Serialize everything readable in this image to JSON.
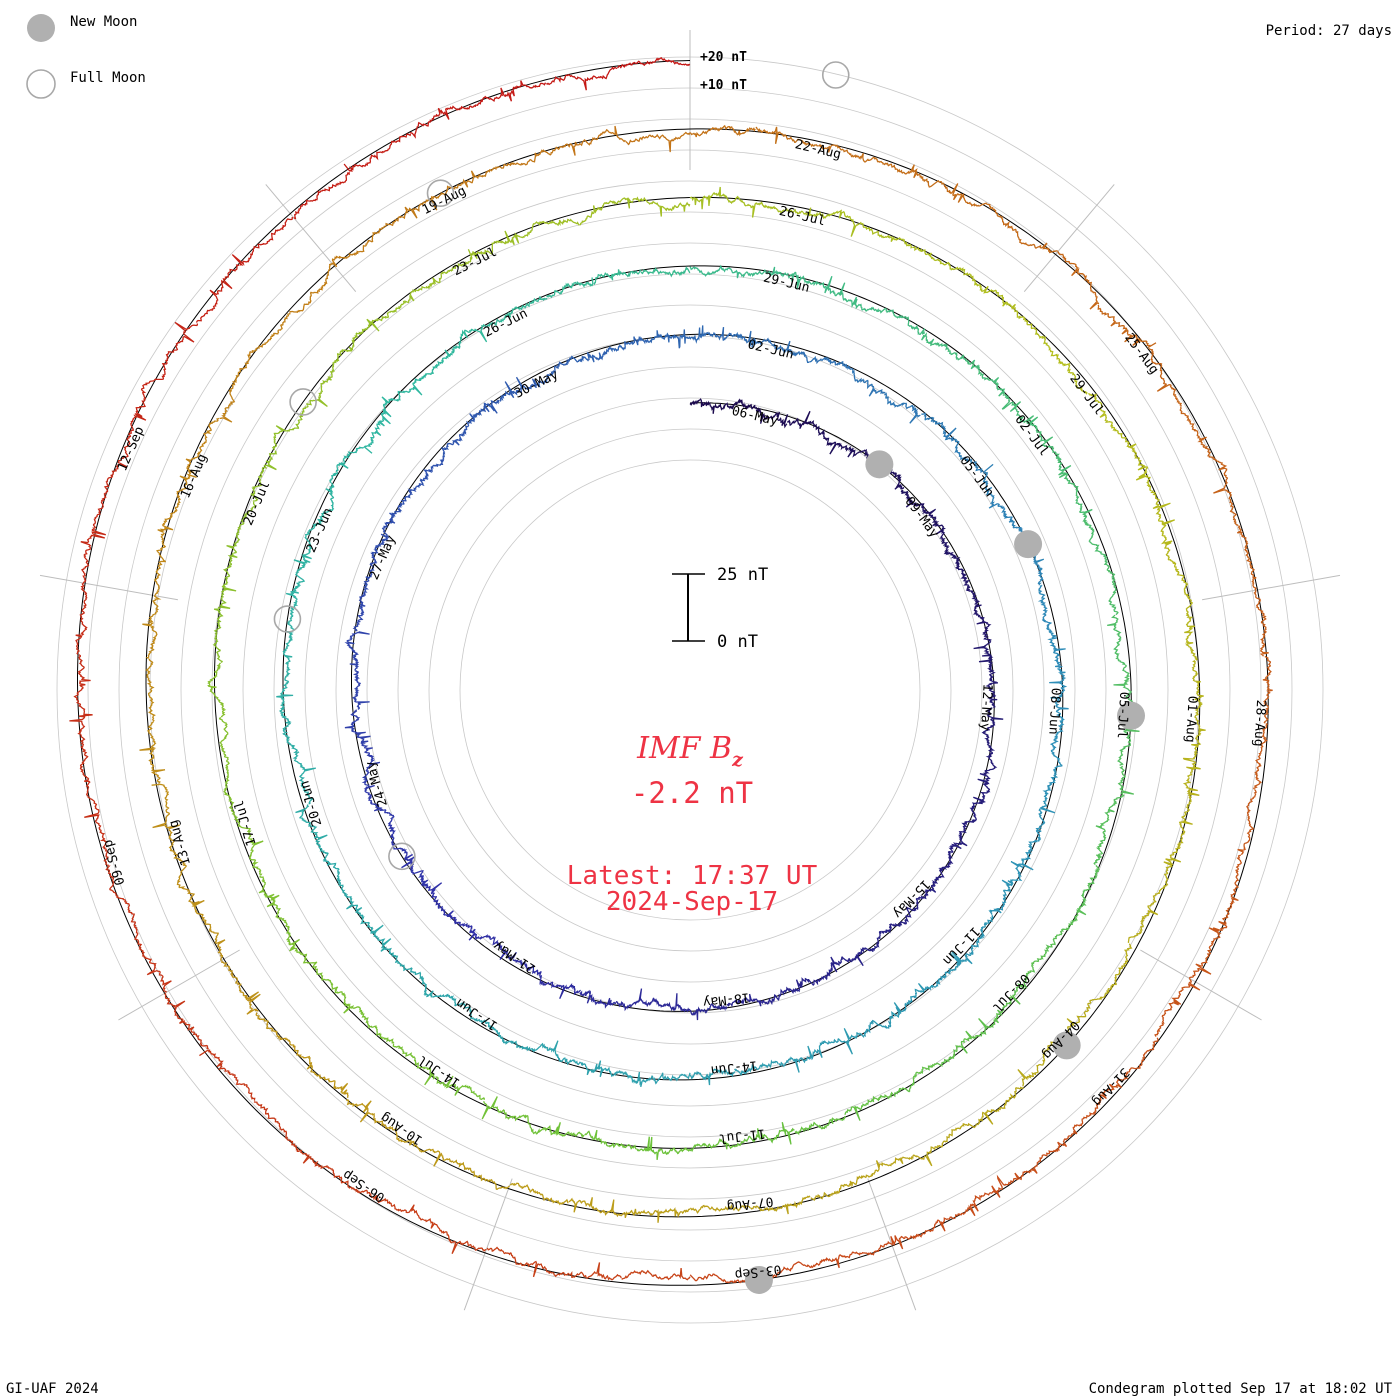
{
  "legend": {
    "new_moon_label": "New Moon",
    "full_moon_label": "Full Moon"
  },
  "header": {
    "period": "Period: 27 days"
  },
  "footer": {
    "credit": "GI-UAF 2024",
    "plotted": "Condegram plotted Sep 17 at 18:02 UT"
  },
  "colors": {
    "new_moon": "#b0b0b0",
    "full_moon_stroke": "#a8a8a8",
    "center_text": "#ee3344",
    "grid": "#c8c8c8",
    "spokes": "#bdbdbd"
  },
  "chart_data": {
    "type": "line",
    "subtype": "condegram spiral",
    "title": "IMF Bz",
    "title_main": "IMF B",
    "title_sub": "z",
    "current_value": "-2.2 nT",
    "latest_label": "Latest: 17:37 UT",
    "latest_date": "2024-Sep-17",
    "period_days": 27,
    "scale_bar": {
      "top_label": "25 nT",
      "bottom_label": "0 nT"
    },
    "ring_labels": [
      "+20 nT",
      "+10 nT"
    ],
    "date_labels": [
      [
        "06-May",
        "09-May",
        "12-May",
        "15-May",
        "18-May",
        "21-May",
        "24-May",
        "27-May",
        "30-May"
      ],
      [
        "02-Jun",
        "05-Jun",
        "08-Jun",
        "11-Jun",
        "14-Jun",
        "17-Jun",
        "20-Jun",
        "23-Jun",
        "26-Jun"
      ],
      [
        "29-Jun",
        "02-Jul",
        "05-Jul",
        "08-Jul",
        "11-Jul",
        "14-Jul",
        "17-Jul",
        "20-Jul",
        "23-Jul"
      ],
      [
        "26-Jul",
        "29-Jul",
        "01-Aug",
        "04-Aug",
        "07-Aug",
        "10-Aug",
        "13-Aug",
        "16-Aug",
        "19-Aug"
      ],
      [
        "22-Aug",
        "25-Aug",
        "28-Aug",
        "31-Aug",
        "03-Sep",
        "06-Sep",
        "09-Sep",
        "12-Sep"
      ]
    ],
    "series": [
      {
        "start": "2024-05-05",
        "end": "2024-06-01",
        "color": "#1c0a4e"
      },
      {
        "start": "2024-06-01",
        "end": "2024-06-28",
        "color": "#2b33a6"
      },
      {
        "start": "2024-06-28",
        "end": "2024-07-25",
        "color": "#2ea6b0"
      },
      {
        "start": "2024-07-25",
        "end": "2024-08-21",
        "color": "#6cc23a"
      },
      {
        "start": "2024-08-21",
        "end": "2024-09-17",
        "color": "#c0a020"
      }
    ],
    "gradient_stops": [
      "#1c0a4e",
      "#3030a8",
      "#2e8fb8",
      "#30b8a0",
      "#6cc23a",
      "#b4be1e",
      "#c08a18",
      "#c8501a",
      "#c41414"
    ],
    "new_moon_dates": [
      "2024-05-08",
      "2024-06-06",
      "2024-07-05",
      "2024-08-04",
      "2024-09-03"
    ],
    "full_moon_dates": [
      "2024-05-23",
      "2024-06-22",
      "2024-07-21",
      "2024-08-19",
      "2024-09-18"
    ],
    "latest_bz_nT": -2.2
  }
}
